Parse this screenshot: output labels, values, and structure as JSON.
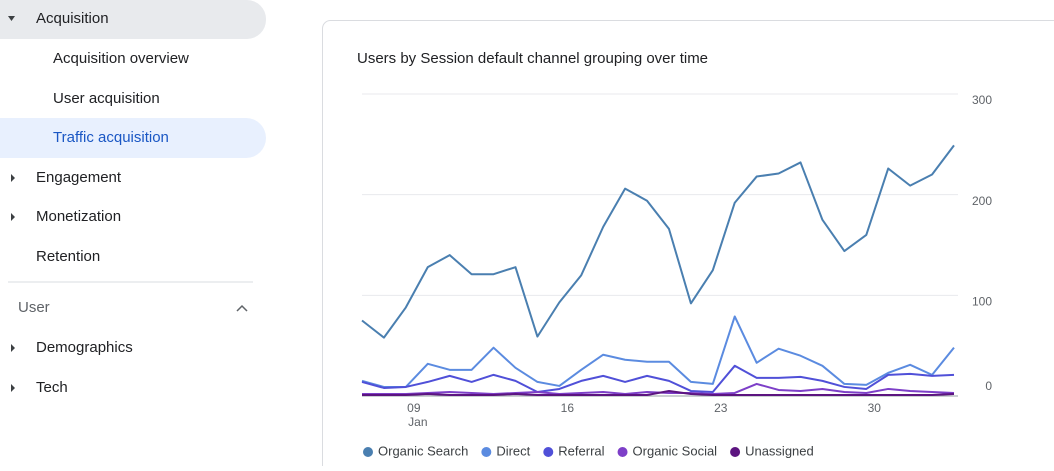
{
  "sidebar": {
    "acquisition": "Acquisition",
    "acquisition_overview": "Acquisition overview",
    "user_acquisition": "User acquisition",
    "traffic_acquisition": "Traffic acquisition",
    "engagement": "Engagement",
    "monetization": "Monetization",
    "retention": "Retention",
    "user_section": "User",
    "demographics": "Demographics",
    "tech": "Tech"
  },
  "chart_data": {
    "type": "line",
    "title": "Users by Session default channel grouping over time",
    "categories": [
      null,
      null,
      "09",
      null,
      null,
      null,
      null,
      null,
      null,
      "16",
      null,
      null,
      null,
      null,
      null,
      null,
      "23",
      null,
      null,
      null,
      null,
      null,
      null,
      "30",
      null,
      null,
      null,
      null
    ],
    "x_month_label": "Jan",
    "ylim": [
      0,
      300
    ],
    "yticks": [
      0,
      100,
      200,
      300
    ],
    "grid": true,
    "series": [
      {
        "name": "Organic Search",
        "color": "#4a7fb0",
        "values": [
          75,
          58,
          88,
          128,
          140,
          121,
          121,
          128,
          59,
          93,
          120,
          168,
          206,
          194,
          166,
          92,
          125,
          192,
          218,
          221,
          232,
          175,
          144,
          160,
          226,
          209,
          220,
          249
        ]
      },
      {
        "name": "Direct",
        "color": "#5b8be0",
        "values": [
          15,
          9,
          9,
          32,
          26,
          26,
          48,
          28,
          14,
          10,
          26,
          41,
          36,
          34,
          34,
          14,
          12,
          79,
          33,
          47,
          40,
          30,
          12,
          11,
          23,
          31,
          21,
          48
        ]
      },
      {
        "name": "Referral",
        "color": "#5050d8",
        "values": [
          14,
          8,
          9,
          14,
          20,
          14,
          21,
          15,
          4,
          7,
          15,
          20,
          14,
          20,
          15,
          5,
          4,
          30,
          18,
          18,
          19,
          15,
          9,
          7,
          21,
          22,
          20,
          21
        ]
      },
      {
        "name": "Organic Social",
        "color": "#7d3fc8",
        "values": [
          2,
          2,
          2,
          3,
          4,
          3,
          2,
          3,
          4,
          2,
          3,
          4,
          2,
          4,
          3,
          3,
          2,
          3,
          12,
          6,
          5,
          7,
          4,
          3,
          7,
          5,
          4,
          3
        ]
      },
      {
        "name": "Unassigned",
        "color": "#5c1480",
        "values": [
          1,
          1,
          1,
          2,
          1,
          1,
          1,
          2,
          1,
          1,
          1,
          1,
          1,
          1,
          5,
          2,
          1,
          1,
          1,
          1,
          1,
          1,
          1,
          1,
          1,
          1,
          1,
          2
        ]
      }
    ]
  }
}
